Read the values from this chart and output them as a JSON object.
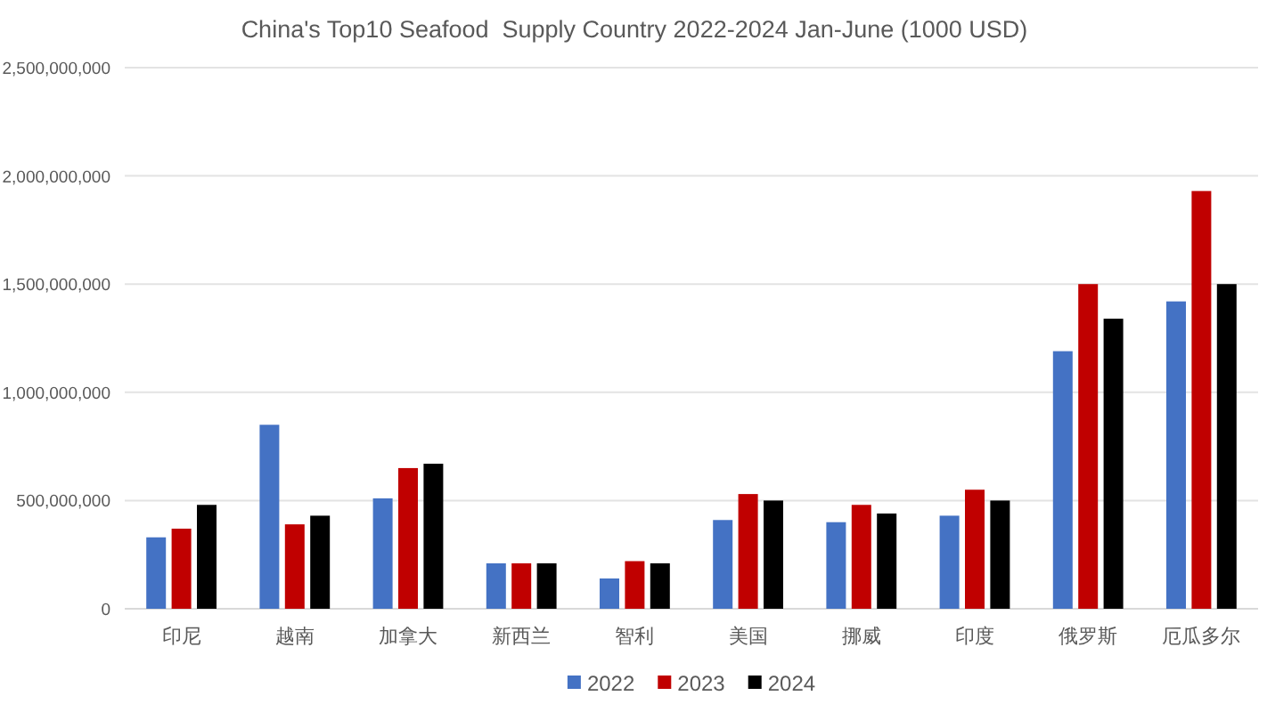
{
  "chart_data": {
    "type": "bar",
    "title": "China's Top10 Seafood  Supply Country 2022-2024 Jan-June (1000 USD)",
    "categories": [
      "印尼",
      "越南",
      "加拿大",
      "新西兰",
      "智利",
      "美国",
      "挪威",
      "印度",
      "俄罗斯",
      "厄瓜多尔"
    ],
    "series": [
      {
        "name": "2022",
        "color": "#4472c4",
        "values": [
          330000000,
          850000000,
          510000000,
          210000000,
          140000000,
          410000000,
          400000000,
          430000000,
          1190000000,
          1420000000
        ]
      },
      {
        "name": "2023",
        "color": "#c00000",
        "values": [
          370000000,
          390000000,
          650000000,
          210000000,
          220000000,
          530000000,
          480000000,
          550000000,
          1500000000,
          1930000000
        ]
      },
      {
        "name": "2024",
        "color": "#000000",
        "values": [
          480000000,
          430000000,
          670000000,
          210000000,
          210000000,
          500000000,
          440000000,
          500000000,
          1340000000,
          1500000000
        ]
      }
    ],
    "ylim": [
      0,
      2500000000
    ],
    "yticks": [
      0,
      {
        "value": 500000000,
        "label": "500,000,000"
      },
      {
        "value": 1000000000,
        "label": "1,000,000,000"
      },
      {
        "value": 1500000000,
        "label": "1,500,000,000"
      },
      {
        "value": 2000000000,
        "label": "2,000,000,000"
      },
      {
        "value": 2500000000,
        "label": "2,500,000,000"
      }
    ],
    "grid": "y",
    "legend": "bottom"
  }
}
